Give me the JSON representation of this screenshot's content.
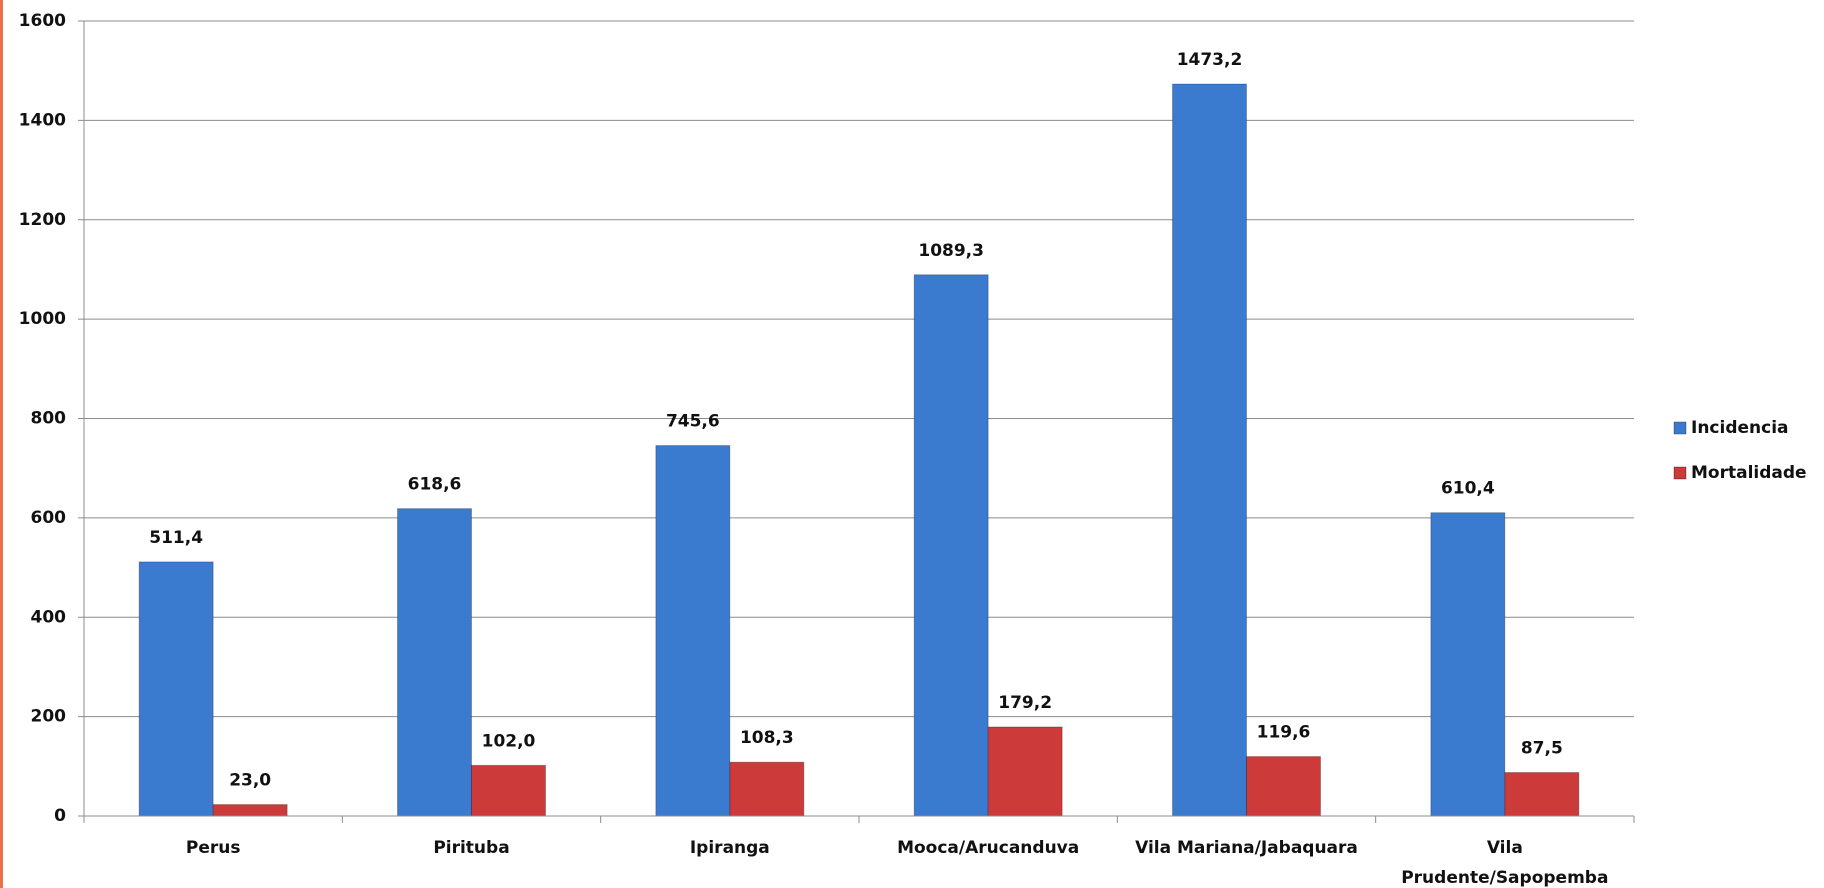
{
  "chart_data": {
    "type": "bar",
    "categories": [
      "Perus",
      "Pirituba",
      "Ipiranga",
      "Mooca/Arucanduva",
      "Vila Mariana/Jabaquara",
      "Vila Prudente/Sapopemba"
    ],
    "series": [
      {
        "name": "Incidencia",
        "color": "#3b7bcf",
        "values": [
          511.4,
          618.6,
          745.6,
          1089.3,
          1473.2,
          610.4
        ],
        "value_labels": [
          "511,4",
          "618,6",
          "745,6",
          "1089,3",
          "1473,2",
          "610,4"
        ]
      },
      {
        "name": "Mortalidade",
        "color": "#cc3a3a",
        "values": [
          23,
          102,
          108.3,
          179.2,
          119.6,
          87.5
        ],
        "value_labels": [
          "23,0",
          "102,0",
          "108,3",
          "179,2",
          "119,6",
          "87,5"
        ]
      }
    ],
    "ylim": [
      0,
      1600
    ],
    "yticks": [
      0,
      200,
      400,
      600,
      800,
      1000,
      1200,
      1400,
      1600
    ],
    "grid": true,
    "legend": "right"
  }
}
